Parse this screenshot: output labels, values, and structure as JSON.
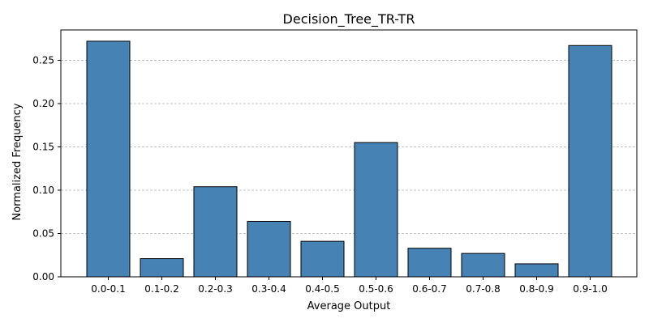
{
  "chart_data": {
    "type": "bar",
    "title": "Decision_Tree_TR-TR",
    "xlabel": "Average Output",
    "ylabel": "Normalized Frequency",
    "categories": [
      "0.0-0.1",
      "0.1-0.2",
      "0.2-0.3",
      "0.3-0.4",
      "0.4-0.5",
      "0.5-0.6",
      "0.6-0.7",
      "0.7-0.8",
      "0.8-0.9",
      "0.9-1.0"
    ],
    "values": [
      0.272,
      0.021,
      0.104,
      0.064,
      0.041,
      0.155,
      0.033,
      0.027,
      0.015,
      0.267
    ],
    "ylim": [
      0,
      0.285
    ],
    "yticks": [
      "0.00",
      "0.05",
      "0.10",
      "0.15",
      "0.20",
      "0.25"
    ],
    "grid": "y-dashed",
    "colors": {
      "bar_fill": "#4682b4",
      "bar_edge": "#000000",
      "grid": "#b0b0b0"
    }
  }
}
